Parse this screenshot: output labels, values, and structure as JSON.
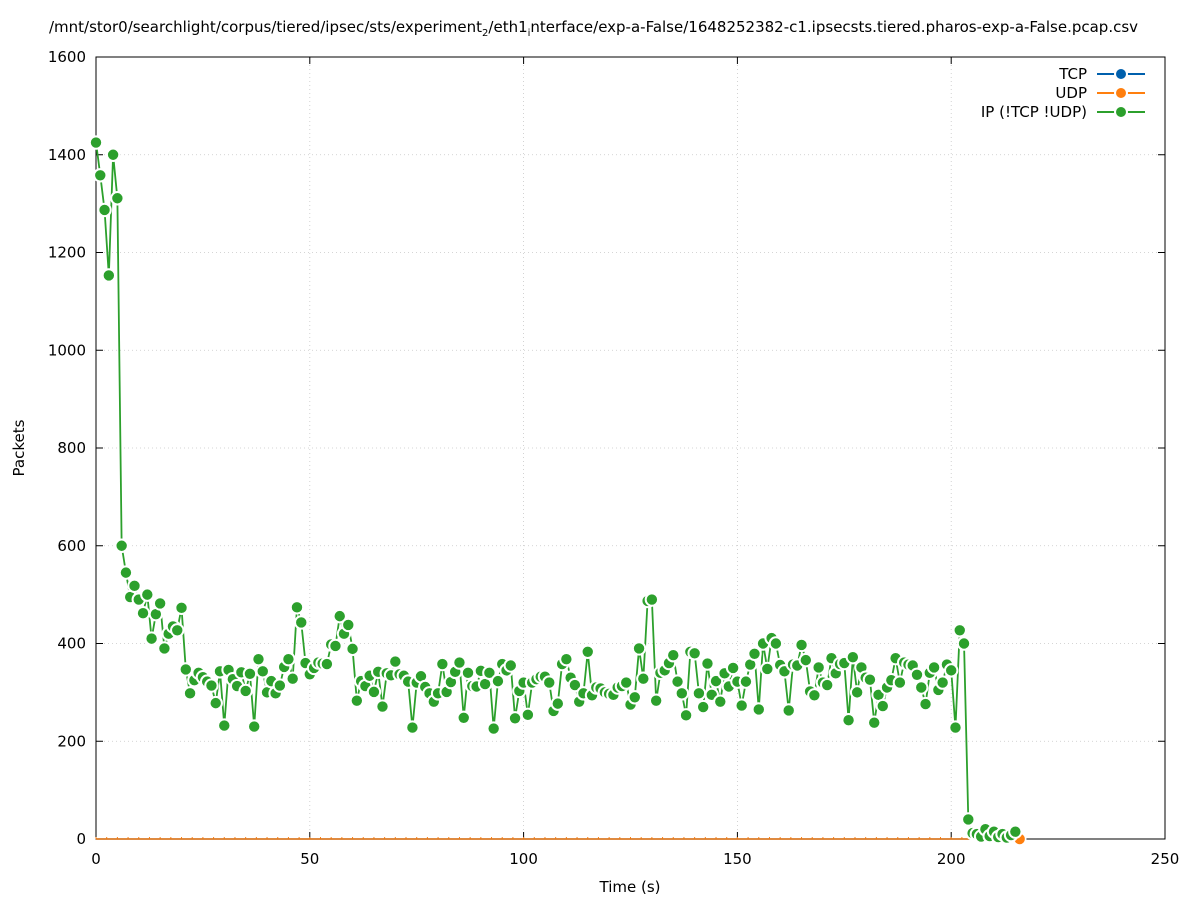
{
  "chart_data": {
    "type": "line",
    "title": {
      "part1": "/mnt/stor0/searchlight/corpus/tiered/ipsec/sts/experiment",
      "sub1": "2",
      "part2": "/eth1",
      "sub2": "i",
      "part3": "nterface/exp-a-False/1648252382-c1.ipsecsts.tiered.pharos-exp-a-False.pcap.csv"
    },
    "xlabel": "Time (s)",
    "ylabel": "Packets",
    "xlim": [
      0,
      250
    ],
    "ylim": [
      0,
      1600
    ],
    "xticks": [
      0,
      50,
      100,
      150,
      200,
      250
    ],
    "yticks": [
      0,
      200,
      400,
      600,
      800,
      1000,
      1200,
      1400,
      1600
    ],
    "grid": true,
    "legend_position": "top-right",
    "colors": {
      "TCP": "#0060ad",
      "UDP": "#ff7f0e",
      "IP": "#2ca02c"
    },
    "series": [
      {
        "name": "TCP",
        "color": "#0060ad",
        "x": [
          0,
          216
        ],
        "y": [
          0,
          0
        ]
      },
      {
        "name": "UDP",
        "color": "#ff7f0e",
        "x": [
          0,
          216
        ],
        "y": [
          0,
          0
        ]
      },
      {
        "name": "IP (!TCP  !UDP)",
        "color": "#2ca02c",
        "x": [
          0,
          1,
          2,
          3,
          4,
          5,
          6,
          7,
          8,
          9,
          10,
          11,
          12,
          13,
          14,
          15,
          16,
          17,
          18,
          19,
          20,
          21,
          22,
          23,
          24,
          25,
          26,
          27,
          28,
          29,
          30,
          31,
          32,
          33,
          34,
          35,
          36,
          37,
          38,
          39,
          40,
          41,
          42,
          43,
          44,
          45,
          46,
          47,
          48,
          49,
          50,
          51,
          52,
          53,
          54,
          55,
          56,
          57,
          58,
          59,
          60,
          61,
          62,
          63,
          64,
          65,
          66,
          67,
          68,
          69,
          70,
          71,
          72,
          73,
          74,
          75,
          76,
          77,
          78,
          79,
          80,
          81,
          82,
          83,
          84,
          85,
          86,
          87,
          88,
          89,
          90,
          91,
          92,
          93,
          94,
          95,
          96,
          97,
          98,
          99,
          100,
          101,
          102,
          103,
          104,
          105,
          106,
          107,
          108,
          109,
          110,
          111,
          112,
          113,
          114,
          115,
          116,
          117,
          118,
          119,
          120,
          121,
          122,
          123,
          124,
          125,
          126,
          127,
          128,
          129,
          130,
          131,
          132,
          133,
          134,
          135,
          136,
          137,
          138,
          139,
          140,
          141,
          142,
          143,
          144,
          145,
          146,
          147,
          148,
          149,
          150,
          151,
          152,
          153,
          154,
          155,
          156,
          157,
          158,
          159,
          160,
          161,
          162,
          163,
          164,
          165,
          166,
          167,
          168,
          169,
          170,
          171,
          172,
          173,
          174,
          175,
          176,
          177,
          178,
          179,
          180,
          181,
          182,
          183,
          184,
          185,
          186,
          187,
          188,
          189,
          190,
          191,
          192,
          193,
          194,
          195,
          196,
          197,
          198,
          199,
          200,
          201,
          202,
          203,
          204,
          205,
          206,
          207,
          208,
          209,
          210,
          211,
          212,
          213,
          214,
          215
        ],
        "y": [
          1425,
          1358,
          1287,
          1153,
          1400,
          1311,
          600,
          545,
          495,
          518,
          490,
          462,
          500,
          410,
          460,
          482,
          390,
          420,
          435,
          427,
          473,
          347,
          298,
          325,
          340,
          331,
          322,
          314,
          278,
          343,
          232,
          346,
          327,
          313,
          341,
          303,
          338,
          230,
          368,
          343,
          300,
          323,
          298,
          314,
          352,
          368,
          328,
          474,
          443,
          360,
          337,
          350,
          361,
          359,
          358,
          398,
          395,
          456,
          420,
          438,
          389,
          283,
          323,
          313,
          334,
          301,
          342,
          271,
          339,
          335,
          363,
          337,
          334,
          322,
          228,
          320,
          333,
          311,
          298,
          281,
          298,
          358,
          301,
          321,
          342,
          361,
          248,
          340,
          313,
          312,
          344,
          317,
          340,
          226,
          323,
          358,
          345,
          355,
          247,
          303,
          320,
          254,
          320,
          327,
          332,
          332,
          320,
          262,
          277,
          358,
          368,
          330,
          315,
          281,
          298,
          383,
          294,
          310,
          308,
          300,
          297,
          295,
          310,
          313,
          320,
          275,
          290,
          390,
          328,
          487,
          490,
          283,
          340,
          345,
          360,
          376,
          322,
          298,
          253,
          383,
          380,
          298,
          270,
          359,
          295,
          323,
          281,
          339,
          312,
          350,
          322,
          273,
          322,
          357,
          379,
          265,
          400,
          348,
          411,
          400,
          356,
          343,
          263,
          357,
          355,
          397,
          366,
          302,
          294,
          351,
          320,
          315,
          370,
          339,
          358,
          360,
          243,
          372,
          300,
          351,
          330,
          326,
          238,
          295,
          272,
          310,
          325,
          370,
          320,
          361,
          357,
          355,
          336,
          310,
          276,
          340,
          351,
          305,
          320,
          357,
          345,
          228,
          427,
          400,
          40,
          12,
          10,
          5,
          20,
          6,
          15,
          4,
          10,
          3,
          8,
          15
        ]
      }
    ]
  }
}
